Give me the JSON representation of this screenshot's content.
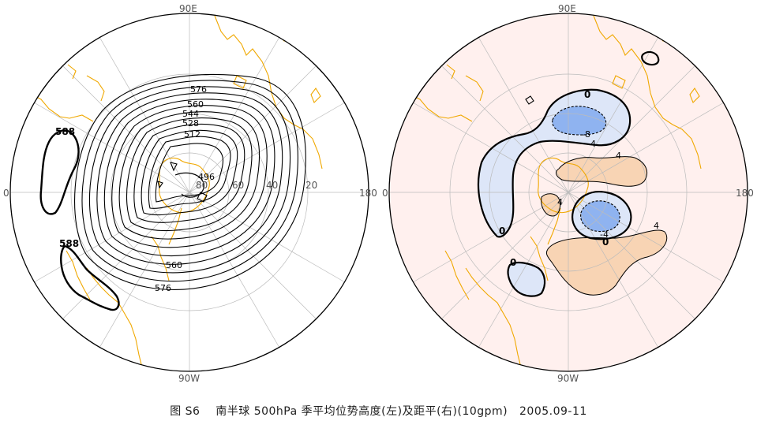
{
  "colors": {
    "coastline": "#f0a800",
    "grid": "#bbbbbb",
    "contour": "#000000",
    "anomaly_background": "#fff0ee",
    "positive_fill": "#f8d4b4",
    "negative_light": "#dde6f8",
    "negative_dark": "#8fb3f0"
  },
  "left_map": {
    "longitude_labels": {
      "top": "90E",
      "left": "0",
      "right": "180",
      "bottom": "90W"
    },
    "contour_labels": [
      "576",
      "560",
      "544",
      "528",
      "512",
      "496",
      "588",
      "588",
      "560",
      "576"
    ],
    "ring_labels": [
      "80",
      "60",
      "40",
      "20"
    ]
  },
  "right_map": {
    "longitude_labels": {
      "top": "90E",
      "left": "0",
      "right": "180",
      "bottom": "90W"
    },
    "contour_labels": [
      "0",
      "-8",
      "-4",
      "4",
      "4",
      "-4",
      "0",
      "4",
      "0",
      "0"
    ]
  },
  "caption": "图 S6    南半球 500hPa 季平均位势高度(左)及距平(右)(10gpm)   2005.09-11"
}
